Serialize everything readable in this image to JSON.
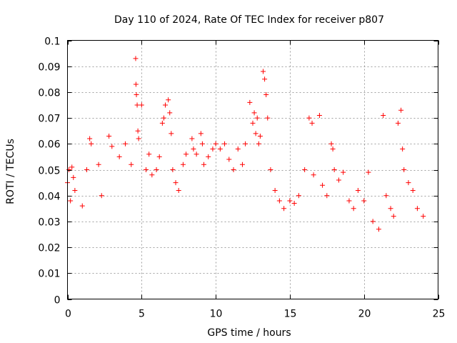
{
  "chart_data": {
    "type": "scatter",
    "title": "Day 110 of 2024, Rate Of TEC Index for receiver p807",
    "xlabel": "GPS time / hours",
    "ylabel": "ROTI / TECUs",
    "xlim": [
      0,
      25
    ],
    "ylim": [
      0,
      0.1
    ],
    "xticks": [
      0,
      5,
      10,
      15,
      20,
      25
    ],
    "xtick_labels": [
      "0",
      "5",
      "10",
      "15",
      "20",
      "25"
    ],
    "yticks": [
      0,
      0.01,
      0.02,
      0.03,
      0.04,
      0.05,
      0.06,
      0.07,
      0.08,
      0.09,
      0.1
    ],
    "ytick_labels": [
      "0",
      "0.01",
      "0.02",
      "0.03",
      "0.04",
      "0.05",
      "0.06",
      "0.07",
      "0.08",
      "0.09",
      "0.1"
    ],
    "grid": true,
    "marker": "+",
    "color": "#ff0000",
    "series": [
      {
        "name": "ROTI",
        "x": [
          0.0,
          0.1,
          0.2,
          0.3,
          0.4,
          0.5,
          1.0,
          1.3,
          1.5,
          1.6,
          2.1,
          2.3,
          2.8,
          3.0,
          3.5,
          3.9,
          4.3,
          4.6,
          4.62,
          4.65,
          4.7,
          4.75,
          4.8,
          5.0,
          5.3,
          5.5,
          5.7,
          6.0,
          6.2,
          6.4,
          6.5,
          6.6,
          6.8,
          6.9,
          7.0,
          7.1,
          7.3,
          7.5,
          7.8,
          8.0,
          8.4,
          8.5,
          8.7,
          9.0,
          9.1,
          9.2,
          9.5,
          9.8,
          10.0,
          10.3,
          10.6,
          10.9,
          11.2,
          11.5,
          11.8,
          12.0,
          12.3,
          12.5,
          12.6,
          12.7,
          12.8,
          12.9,
          13.0,
          13.2,
          13.3,
          13.4,
          13.5,
          13.7,
          14.0,
          14.3,
          14.6,
          15.0,
          15.3,
          15.6,
          16.0,
          16.3,
          16.5,
          16.6,
          17.0,
          17.2,
          17.5,
          17.8,
          17.9,
          18.0,
          18.3,
          18.6,
          19.0,
          19.3,
          19.6,
          20.0,
          20.3,
          20.6,
          21.0,
          21.3,
          21.5,
          21.8,
          22.0,
          22.3,
          22.5,
          22.6,
          22.7,
          23.0,
          23.3,
          23.6,
          24.0
        ],
        "y": [
          0.045,
          0.05,
          0.038,
          0.051,
          0.047,
          0.042,
          0.036,
          0.05,
          0.062,
          0.06,
          0.052,
          0.04,
          0.063,
          0.059,
          0.055,
          0.06,
          0.052,
          0.093,
          0.083,
          0.079,
          0.075,
          0.065,
          0.062,
          0.075,
          0.05,
          0.056,
          0.048,
          0.05,
          0.055,
          0.068,
          0.07,
          0.075,
          0.077,
          0.072,
          0.064,
          0.05,
          0.045,
          0.042,
          0.052,
          0.056,
          0.062,
          0.058,
          0.056,
          0.064,
          0.06,
          0.052,
          0.055,
          0.058,
          0.06,
          0.058,
          0.06,
          0.054,
          0.05,
          0.058,
          0.052,
          0.06,
          0.076,
          0.068,
          0.072,
          0.064,
          0.07,
          0.06,
          0.063,
          0.088,
          0.085,
          0.079,
          0.07,
          0.05,
          0.042,
          0.038,
          0.035,
          0.038,
          0.037,
          0.04,
          0.05,
          0.07,
          0.068,
          0.048,
          0.071,
          0.044,
          0.04,
          0.06,
          0.058,
          0.05,
          0.046,
          0.049,
          0.038,
          0.035,
          0.042,
          0.038,
          0.049,
          0.03,
          0.027,
          0.071,
          0.04,
          0.035,
          0.032,
          0.068,
          0.073,
          0.058,
          0.05,
          0.045,
          0.042,
          0.035,
          0.032
        ]
      }
    ]
  }
}
